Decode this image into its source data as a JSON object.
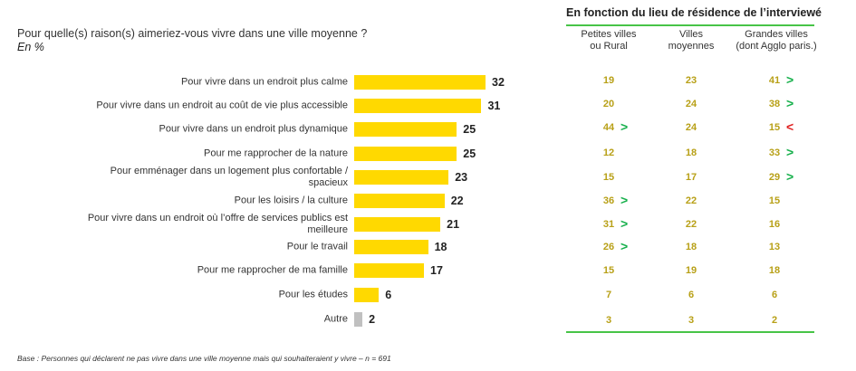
{
  "header": {
    "question": "Pour quelle(s) raison(s) aimeriez-vous vivre dans une ville moyenne ?",
    "unit": "En %"
  },
  "footer": {
    "base": "Base : Personnes qui déclarent ne pas vivre dans une ville moyenne mais qui souhaiteraient y vivre – n = 691"
  },
  "colors": {
    "bar": "#ffd900",
    "bar_other": "#c0c0c0",
    "table_value": "#b8a017",
    "higher": "#17b04c",
    "lower": "#e02020",
    "rule": "#47c447"
  },
  "chart_data": {
    "type": "bar",
    "orientation": "horizontal",
    "title": "Pour quelle(s) raison(s) aimeriez-vous vivre dans une ville moyenne ?",
    "subtitle": "En %",
    "xlabel": "",
    "ylabel": "",
    "xlim": [
      0,
      32
    ],
    "grid": false,
    "categories": [
      "Pour vivre dans un endroit plus calme",
      "Pour vivre dans un endroit au coût de vie plus accessible",
      "Pour vivre dans un endroit plus dynamique",
      "Pour me rapprocher de la nature",
      "Pour emménager dans un logement plus confortable / spacieux",
      "Pour les loisirs / la culture",
      "Pour vivre dans un endroit où l’offre de services publics est meilleure",
      "Pour le travail",
      "Pour me rapprocher de ma famille",
      "Pour les études",
      "Autre"
    ],
    "values": [
      32,
      31,
      25,
      25,
      23,
      22,
      21,
      18,
      17,
      6,
      2
    ]
  },
  "breakdown": {
    "title": "En fonction du lieu de résidence de l’interviewé",
    "columns": [
      {
        "line1": "Petites villes",
        "line2": "ou Rural"
      },
      {
        "line1": "Villes",
        "line2": "moyennes"
      },
      {
        "line1": "Grandes villes",
        "line2": "(dont Agglo paris.)"
      }
    ],
    "rows": [
      [
        {
          "v": "19",
          "s": ""
        },
        {
          "v": "23",
          "s": ""
        },
        {
          "v": "41",
          "s": ">"
        }
      ],
      [
        {
          "v": "20",
          "s": ""
        },
        {
          "v": "24",
          "s": ""
        },
        {
          "v": "38",
          "s": ">"
        }
      ],
      [
        {
          "v": "44",
          "s": ">"
        },
        {
          "v": "24",
          "s": ""
        },
        {
          "v": "15",
          "s": "<"
        }
      ],
      [
        {
          "v": "12",
          "s": ""
        },
        {
          "v": "18",
          "s": ""
        },
        {
          "v": "33",
          "s": ">"
        }
      ],
      [
        {
          "v": "15",
          "s": ""
        },
        {
          "v": "17",
          "s": ""
        },
        {
          "v": "29",
          "s": ">"
        }
      ],
      [
        {
          "v": "36",
          "s": ">"
        },
        {
          "v": "22",
          "s": ""
        },
        {
          "v": "15",
          "s": ""
        }
      ],
      [
        {
          "v": "31",
          "s": ">"
        },
        {
          "v": "22",
          "s": ""
        },
        {
          "v": "16",
          "s": ""
        }
      ],
      [
        {
          "v": "26",
          "s": ">"
        },
        {
          "v": "18",
          "s": ""
        },
        {
          "v": "13",
          "s": ""
        }
      ],
      [
        {
          "v": "15",
          "s": ""
        },
        {
          "v": "19",
          "s": ""
        },
        {
          "v": "18",
          "s": ""
        }
      ],
      [
        {
          "v": "7",
          "s": ""
        },
        {
          "v": "6",
          "s": ""
        },
        {
          "v": "6",
          "s": ""
        }
      ],
      [
        {
          "v": "3",
          "s": ""
        },
        {
          "v": "3",
          "s": ""
        },
        {
          "v": "2",
          "s": ""
        }
      ]
    ]
  }
}
